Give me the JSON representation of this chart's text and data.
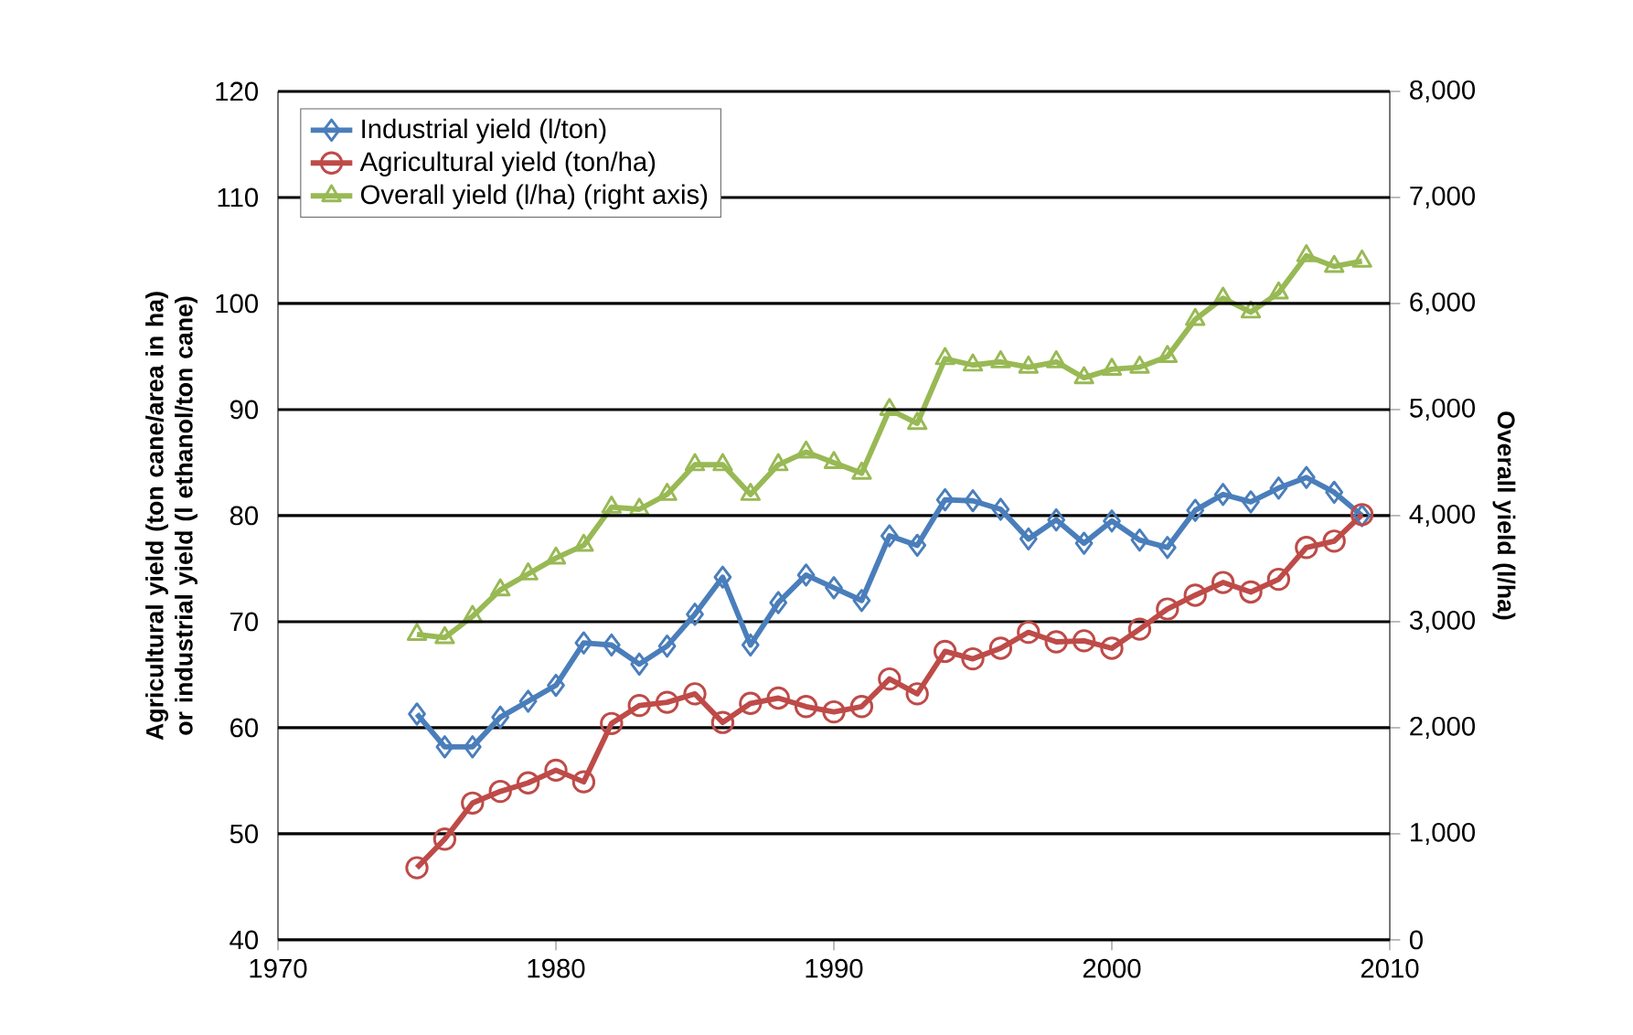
{
  "chart_data": {
    "type": "line",
    "xlabel": null,
    "ylabel": "Agricultural yield (ton cane/area in ha) or industrial yield (l ethanol/ton cane)",
    "y2label": "Overall yield (l/ha)",
    "x": [
      1975,
      1976,
      1977,
      1978,
      1979,
      1980,
      1981,
      1982,
      1983,
      1984,
      1985,
      1986,
      1987,
      1988,
      1989,
      1990,
      1991,
      1992,
      1993,
      1994,
      1995,
      1996,
      1997,
      1998,
      1999,
      2000,
      2001,
      2002,
      2003,
      2004,
      2005,
      2006,
      2007,
      2008,
      2009
    ],
    "series": [
      {
        "name": "Industrial yield (l/ton)",
        "color": "#4a7ebb",
        "marker": "diamond",
        "values": [
          61.3,
          58.2,
          58.2,
          61,
          62.5,
          64,
          68,
          67.8,
          66,
          67.7,
          70.7,
          74.2,
          67.8,
          71.8,
          74.4,
          73.2,
          72,
          78.1,
          77.2,
          81.5,
          81.4,
          80.6,
          77.8,
          79.6,
          77.4,
          79.5,
          77.7,
          77,
          80.5,
          82,
          81.3,
          82.6,
          83.6,
          82.2,
          80
        ]
      },
      {
        "name": "Agricultural yield (ton/ha)",
        "color": "#be4b48",
        "marker": "circle",
        "values": [
          46.8,
          49.5,
          52.9,
          54,
          54.8,
          56,
          54.9,
          60.4,
          62.1,
          62.4,
          63.2,
          60.5,
          62.3,
          62.8,
          62,
          61.5,
          62,
          64.6,
          63.2,
          67.2,
          66.5,
          67.5,
          69,
          68.1,
          68.2,
          67.5,
          69.3,
          71.2,
          72.5,
          73.7,
          72.8,
          74,
          77,
          77.6,
          80.1
        ]
      },
      {
        "name": "Overall yield (l/ha) (right axis)",
        "color": "#98b954",
        "marker": "triangle",
        "axis": "y2",
        "values": [
          2880,
          2850,
          3050,
          3300,
          3450,
          3600,
          3720,
          4080,
          4060,
          4200,
          4480,
          4480,
          4200,
          4480,
          4600,
          4500,
          4400,
          5000,
          4870,
          5480,
          5420,
          5450,
          5400,
          5450,
          5300,
          5380,
          5400,
          5500,
          5850,
          6050,
          5920,
          6100,
          6450,
          6350,
          6400
        ]
      }
    ],
    "xlim": [
      1970,
      2010
    ],
    "xticks": [
      1970,
      1980,
      1990,
      2000,
      2010
    ],
    "ylim": [
      40,
      120
    ],
    "yticks": [
      40,
      50,
      60,
      70,
      80,
      90,
      100,
      110,
      120
    ],
    "y2lim": [
      0,
      8000
    ],
    "y2ticks": [
      0,
      {
        "value": 1000,
        "label": "1,000"
      },
      {
        "value": 2000,
        "label": "2,000"
      },
      {
        "value": 3000,
        "label": "3,000"
      },
      {
        "value": 4000,
        "label": "4,000"
      },
      {
        "value": 5000,
        "label": "5,000"
      },
      {
        "value": 6000,
        "label": "6,000"
      },
      {
        "value": 7000,
        "label": "7,000"
      },
      {
        "value": 8000,
        "label": "8,000"
      }
    ],
    "grid": "y",
    "legend": "top left",
    "line_style": "solid"
  }
}
